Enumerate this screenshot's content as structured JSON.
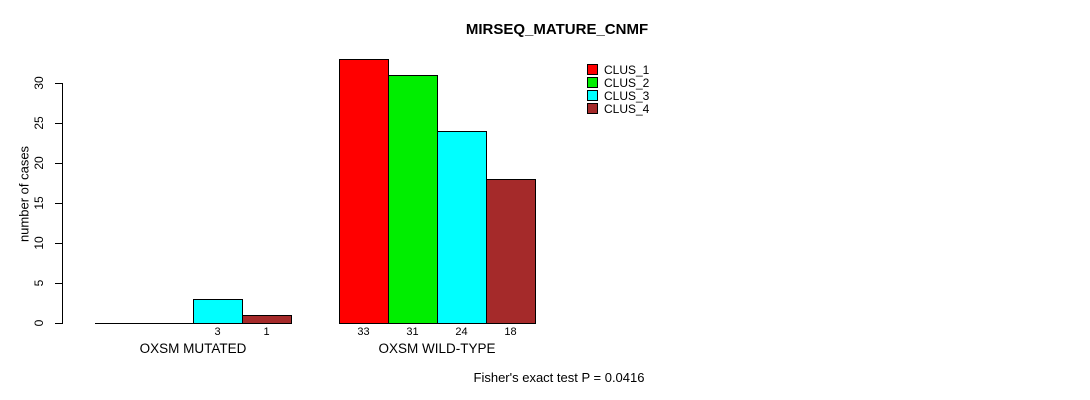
{
  "title": "MIRSEQ_MATURE_CNMF",
  "footnote": "Fisher's exact test P = 0.0416",
  "chart_data": {
    "type": "bar",
    "grouped": true,
    "title": "MIRSEQ_MATURE_CNMF",
    "ylabel": "number of cases",
    "xlabel": "",
    "categories": [
      "OXSM MUTATED",
      "OXSM WILD-TYPE"
    ],
    "series": [
      {
        "name": "CLUS_1",
        "color": "#ff0000",
        "values": [
          0,
          33
        ]
      },
      {
        "name": "CLUS_2",
        "color": "#00ee00",
        "values": [
          0,
          31
        ]
      },
      {
        "name": "CLUS_3",
        "color": "#00ffff",
        "values": [
          3,
          24
        ]
      },
      {
        "name": "CLUS_4",
        "color": "#a52a2a",
        "values": [
          1,
          18
        ]
      }
    ],
    "bar_value_labels": [
      [
        "",
        "",
        "3",
        "1"
      ],
      [
        "33",
        "31",
        "24",
        "18"
      ]
    ],
    "yticks": [
      0,
      5,
      10,
      15,
      20,
      25,
      30
    ],
    "ylim": [
      0,
      33
    ],
    "grid": false,
    "legend_position": "top-right",
    "legend_entries": [
      "CLUS_1",
      "CLUS_2",
      "CLUS_3",
      "CLUS_4"
    ],
    "annotation": "Fisher's exact test P = 0.0416"
  },
  "colors": {
    "axis": "#000000",
    "text": "#000000",
    "background": "#ffffff"
  }
}
